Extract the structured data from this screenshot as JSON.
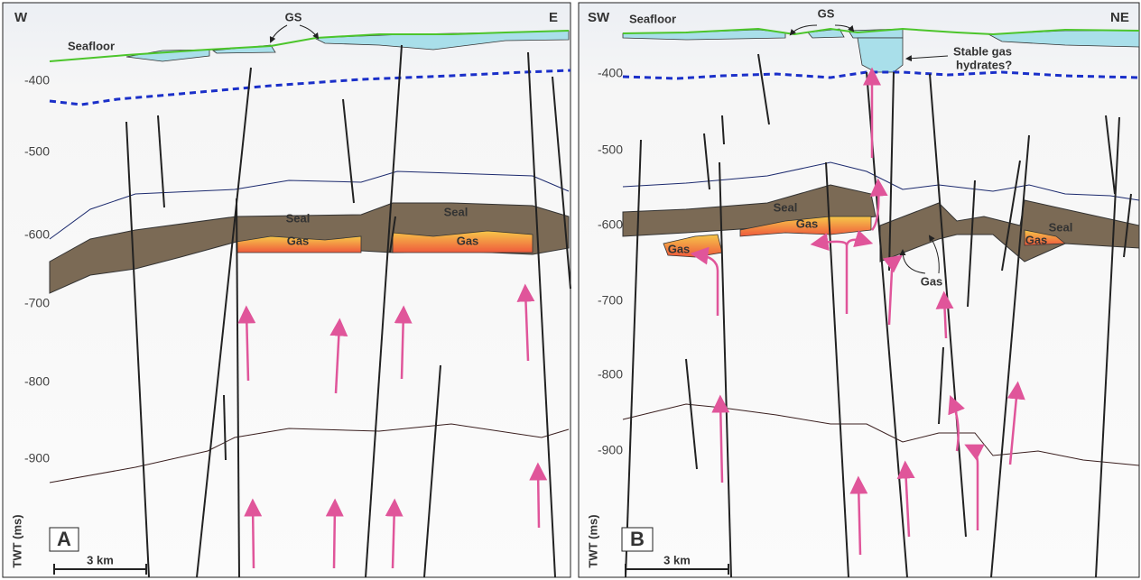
{
  "panels": [
    {
      "label": "A",
      "left": "W",
      "right": "E",
      "seafloor": "Seafloor",
      "gs": "GS",
      "seal_labels": [
        "Seal",
        "Seal"
      ],
      "gas_labels": [
        "Gas",
        "Gas"
      ],
      "axis_label": "TWT (ms)",
      "yticks": [
        -400,
        -500,
        -600,
        -700,
        -800,
        -900
      ],
      "scale": "3 km"
    },
    {
      "label": "B",
      "left": "SW",
      "right": "NE",
      "seafloor": "Seafloor",
      "gs": "GS",
      "hydrates": [
        "Stable gas",
        "hydrates?"
      ],
      "seal_labels": [
        "Seal",
        "Seal"
      ],
      "gas_labels": [
        "Gas",
        "Gas",
        "Gas"
      ],
      "gas_callout": "Gas",
      "axis_label": "TWT (ms)",
      "yticks": [
        -400,
        -500,
        -600,
        -700,
        -800,
        -900
      ],
      "scale": "3 km"
    }
  ]
}
